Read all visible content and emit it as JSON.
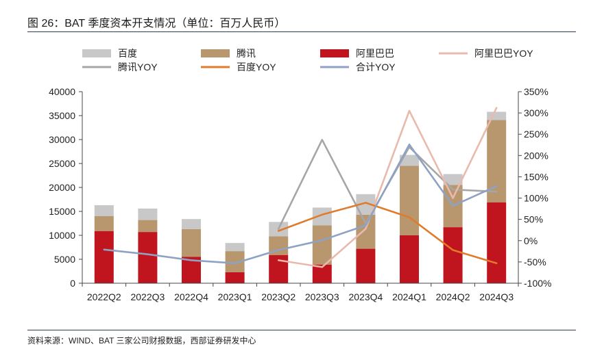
{
  "figure": {
    "title": "图 26：BAT 季度资本开支情况（单位：百万人民币）",
    "source": "资料来源：WIND、BAT 三家公司财报数据，西部证券研发中心"
  },
  "colors": {
    "baidu": "#c8c8c8",
    "tencent": "#b8976e",
    "alibaba": "#c0141e",
    "alibaba_yoy": "#e9b9ad",
    "tencent_yoy": "#a6a6a6",
    "baidu_yoy": "#e07b2c",
    "total_yoy": "#8ea2c4",
    "axis": "#444444"
  },
  "chart_data": {
    "type": "bar",
    "stacked": true,
    "title": "BAT 季度资本开支情况（单位：百万人民币）",
    "categories": [
      "2022Q2",
      "2022Q3",
      "2022Q4",
      "2023Q1",
      "2023Q2",
      "2023Q3",
      "2023Q4",
      "2024Q1",
      "2024Q2",
      "2024Q3"
    ],
    "left_axis": {
      "min": 0,
      "max": 40000,
      "ticks": [
        "0",
        "5000",
        "10000",
        "15000",
        "20000",
        "25000",
        "30000",
        "35000",
        "40000"
      ]
    },
    "right_axis": {
      "min": -100,
      "max": 350,
      "ticks": [
        "-100%",
        "-50%",
        "0%",
        "50%",
        "100%",
        "150%",
        "200%",
        "250%",
        "300%",
        "350%"
      ]
    },
    "legend": [
      {
        "key": "baidu",
        "label": "百度",
        "kind": "bar"
      },
      {
        "key": "tencent",
        "label": "腾讯",
        "kind": "bar"
      },
      {
        "key": "alibaba",
        "label": "阿里巴巴",
        "kind": "bar"
      },
      {
        "key": "alibaba_yoy",
        "label": "阿里巴巴YOY",
        "kind": "line"
      },
      {
        "key": "tencent_yoy",
        "label": "腾讯YOY",
        "kind": "line"
      },
      {
        "key": "baidu_yoy",
        "label": "百度YOY",
        "kind": "line"
      },
      {
        "key": "total_yoy",
        "label": "合计YOY",
        "kind": "line"
      }
    ],
    "bar_series": [
      {
        "key": "alibaba",
        "name": "阿里巴巴",
        "values": [
          10900,
          10700,
          5500,
          2300,
          5900,
          3900,
          7200,
          10000,
          11700,
          16900
        ]
      },
      {
        "key": "tencent",
        "name": "腾讯",
        "values": [
          3100,
          2500,
          5800,
          4400,
          3900,
          8200,
          7100,
          14500,
          8800,
          17200
        ]
      },
      {
        "key": "baidu",
        "name": "百度",
        "values": [
          2300,
          2400,
          2100,
          1700,
          3000,
          3700,
          4300,
          2300,
          2300,
          1700
        ]
      }
    ],
    "line_series": [
      {
        "key": "tencent_yoy",
        "name": "腾讯YOY",
        "values": [
          null,
          null,
          null,
          null,
          28,
          237,
          40,
          220,
          120,
          115
        ]
      },
      {
        "key": "alibaba_yoy",
        "name": "阿里巴巴YOY",
        "values": [
          null,
          null,
          null,
          null,
          -46,
          -62,
          28,
          305,
          100,
          312
        ]
      },
      {
        "key": "baidu_yoy",
        "name": "百度YOY",
        "values": [
          null,
          null,
          null,
          null,
          23,
          61,
          89,
          55,
          -22,
          -53
        ]
      },
      {
        "key": "total_yoy",
        "name": "合计YOY",
        "values": [
          -21,
          -32,
          -46,
          -53,
          -22,
          1,
          36,
          226,
          82,
          128
        ]
      }
    ]
  }
}
